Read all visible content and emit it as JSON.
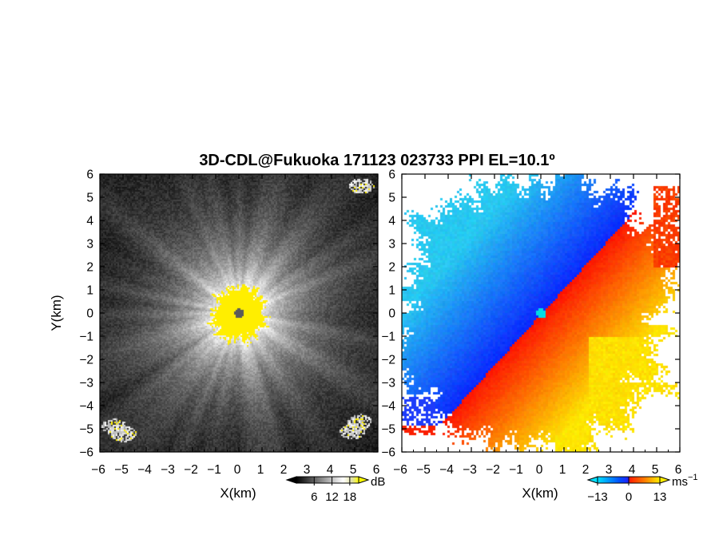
{
  "title": "3D-CDL@Fukuoka 171123 023733 PPI EL=10.1º",
  "chart_data": [
    {
      "type": "heatmap",
      "panel": "reflectivity",
      "xlabel": "X(km)",
      "ylabel": "Y(km)",
      "xlim": [
        -6,
        6
      ],
      "ylim": [
        -6,
        6
      ],
      "x_ticks": [
        "−6",
        "−5",
        "−4",
        "−3",
        "−2",
        "−1",
        "0",
        "1",
        "2",
        "3",
        "4",
        "5",
        "6"
      ],
      "y_ticks": [
        "−6",
        "−5",
        "−4",
        "−3",
        "−2",
        "−1",
        "0",
        "1",
        "2",
        "3",
        "4",
        "5",
        "6"
      ],
      "colormap": [
        "#000000",
        "#ffffff",
        "#ffff00"
      ],
      "colorbar": {
        "unit": "dB",
        "ticks": [
          "6",
          "12",
          "18"
        ],
        "range": [
          0,
          21
        ]
      },
      "radar_center": [
        0,
        0
      ],
      "high_echo_patches": [
        [
          0,
          0
        ],
        [
          -5.4,
          -4.9
        ],
        [
          -5.0,
          -5.2
        ],
        [
          4.9,
          -5.1
        ],
        [
          5.2,
          -4.7
        ],
        [
          5.3,
          5.5
        ]
      ]
    },
    {
      "type": "heatmap",
      "panel": "doppler_velocity",
      "xlabel": "X(km)",
      "xlim": [
        -6,
        6
      ],
      "ylim": [
        -6,
        6
      ],
      "x_ticks": [
        "−6",
        "−5",
        "−4",
        "−3",
        "−2",
        "−1",
        "0",
        "1",
        "2",
        "3",
        "4",
        "5",
        "6"
      ],
      "y_ticks": [
        "−6",
        "−5",
        "−4",
        "−3",
        "−2",
        "−1",
        "0",
        "1",
        "2",
        "3",
        "4",
        "5",
        "6"
      ],
      "colormap": [
        "#00ccff",
        "#0044ff",
        "#ff1a00",
        "#ffee00"
      ],
      "colorbar": {
        "unit": "ms",
        "unit_exp": "−1",
        "ticks": [
          "−13",
          "0",
          "13"
        ],
        "range": [
          -13,
          13
        ]
      },
      "radar_center": [
        0,
        0
      ],
      "zero_velocity_line_slope": 1.1,
      "negative_side": "upper-left",
      "positive_side": "lower-right"
    }
  ]
}
